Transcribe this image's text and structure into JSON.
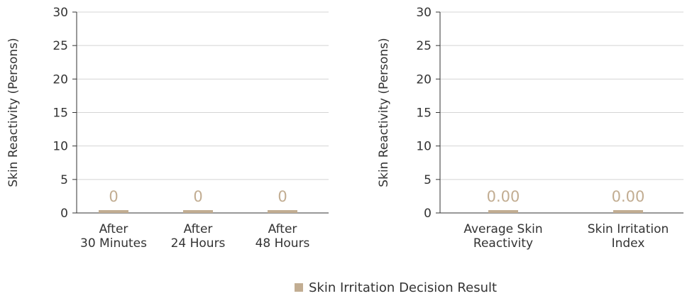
{
  "chart_data": [
    {
      "type": "bar",
      "title": "",
      "xlabel": "",
      "ylabel": "Skin Reactivity (Persons)",
      "ylim": [
        0,
        30
      ],
      "yticks": [
        "0",
        "5",
        "10",
        "15",
        "20",
        "25",
        "30"
      ],
      "grid": true,
      "categories": [
        [
          "After",
          "30 Minutes"
        ],
        [
          "After",
          "24 Hours"
        ],
        [
          "After",
          "48 Hours"
        ]
      ],
      "series": [
        {
          "name": "Skin Irritation Decision Result",
          "values": [
            0,
            0,
            0
          ]
        }
      ],
      "data_labels": [
        "0",
        "0",
        "0"
      ]
    },
    {
      "type": "bar",
      "title": "",
      "xlabel": "",
      "ylabel": "Skin Reactivity (Persons)",
      "ylim": [
        0,
        30
      ],
      "yticks": [
        "0",
        "5",
        "10",
        "15",
        "20",
        "25",
        "30"
      ],
      "grid": true,
      "categories": [
        [
          "Average Skin",
          "Reactivity"
        ],
        [
          "Skin Irritation",
          "Index"
        ]
      ],
      "series": [
        {
          "name": "Skin Irritation Decision Result",
          "values": [
            0.0,
            0.0
          ]
        }
      ],
      "data_labels": [
        "0.00",
        "0.00"
      ]
    }
  ],
  "legend": {
    "label": "Skin Irritation Decision Result",
    "position": "bottom-center"
  },
  "colors": {
    "bar": "#c2ad92",
    "data_label": "#c2ad92",
    "grid": "#d4d4d4",
    "axis": "#333333"
  }
}
